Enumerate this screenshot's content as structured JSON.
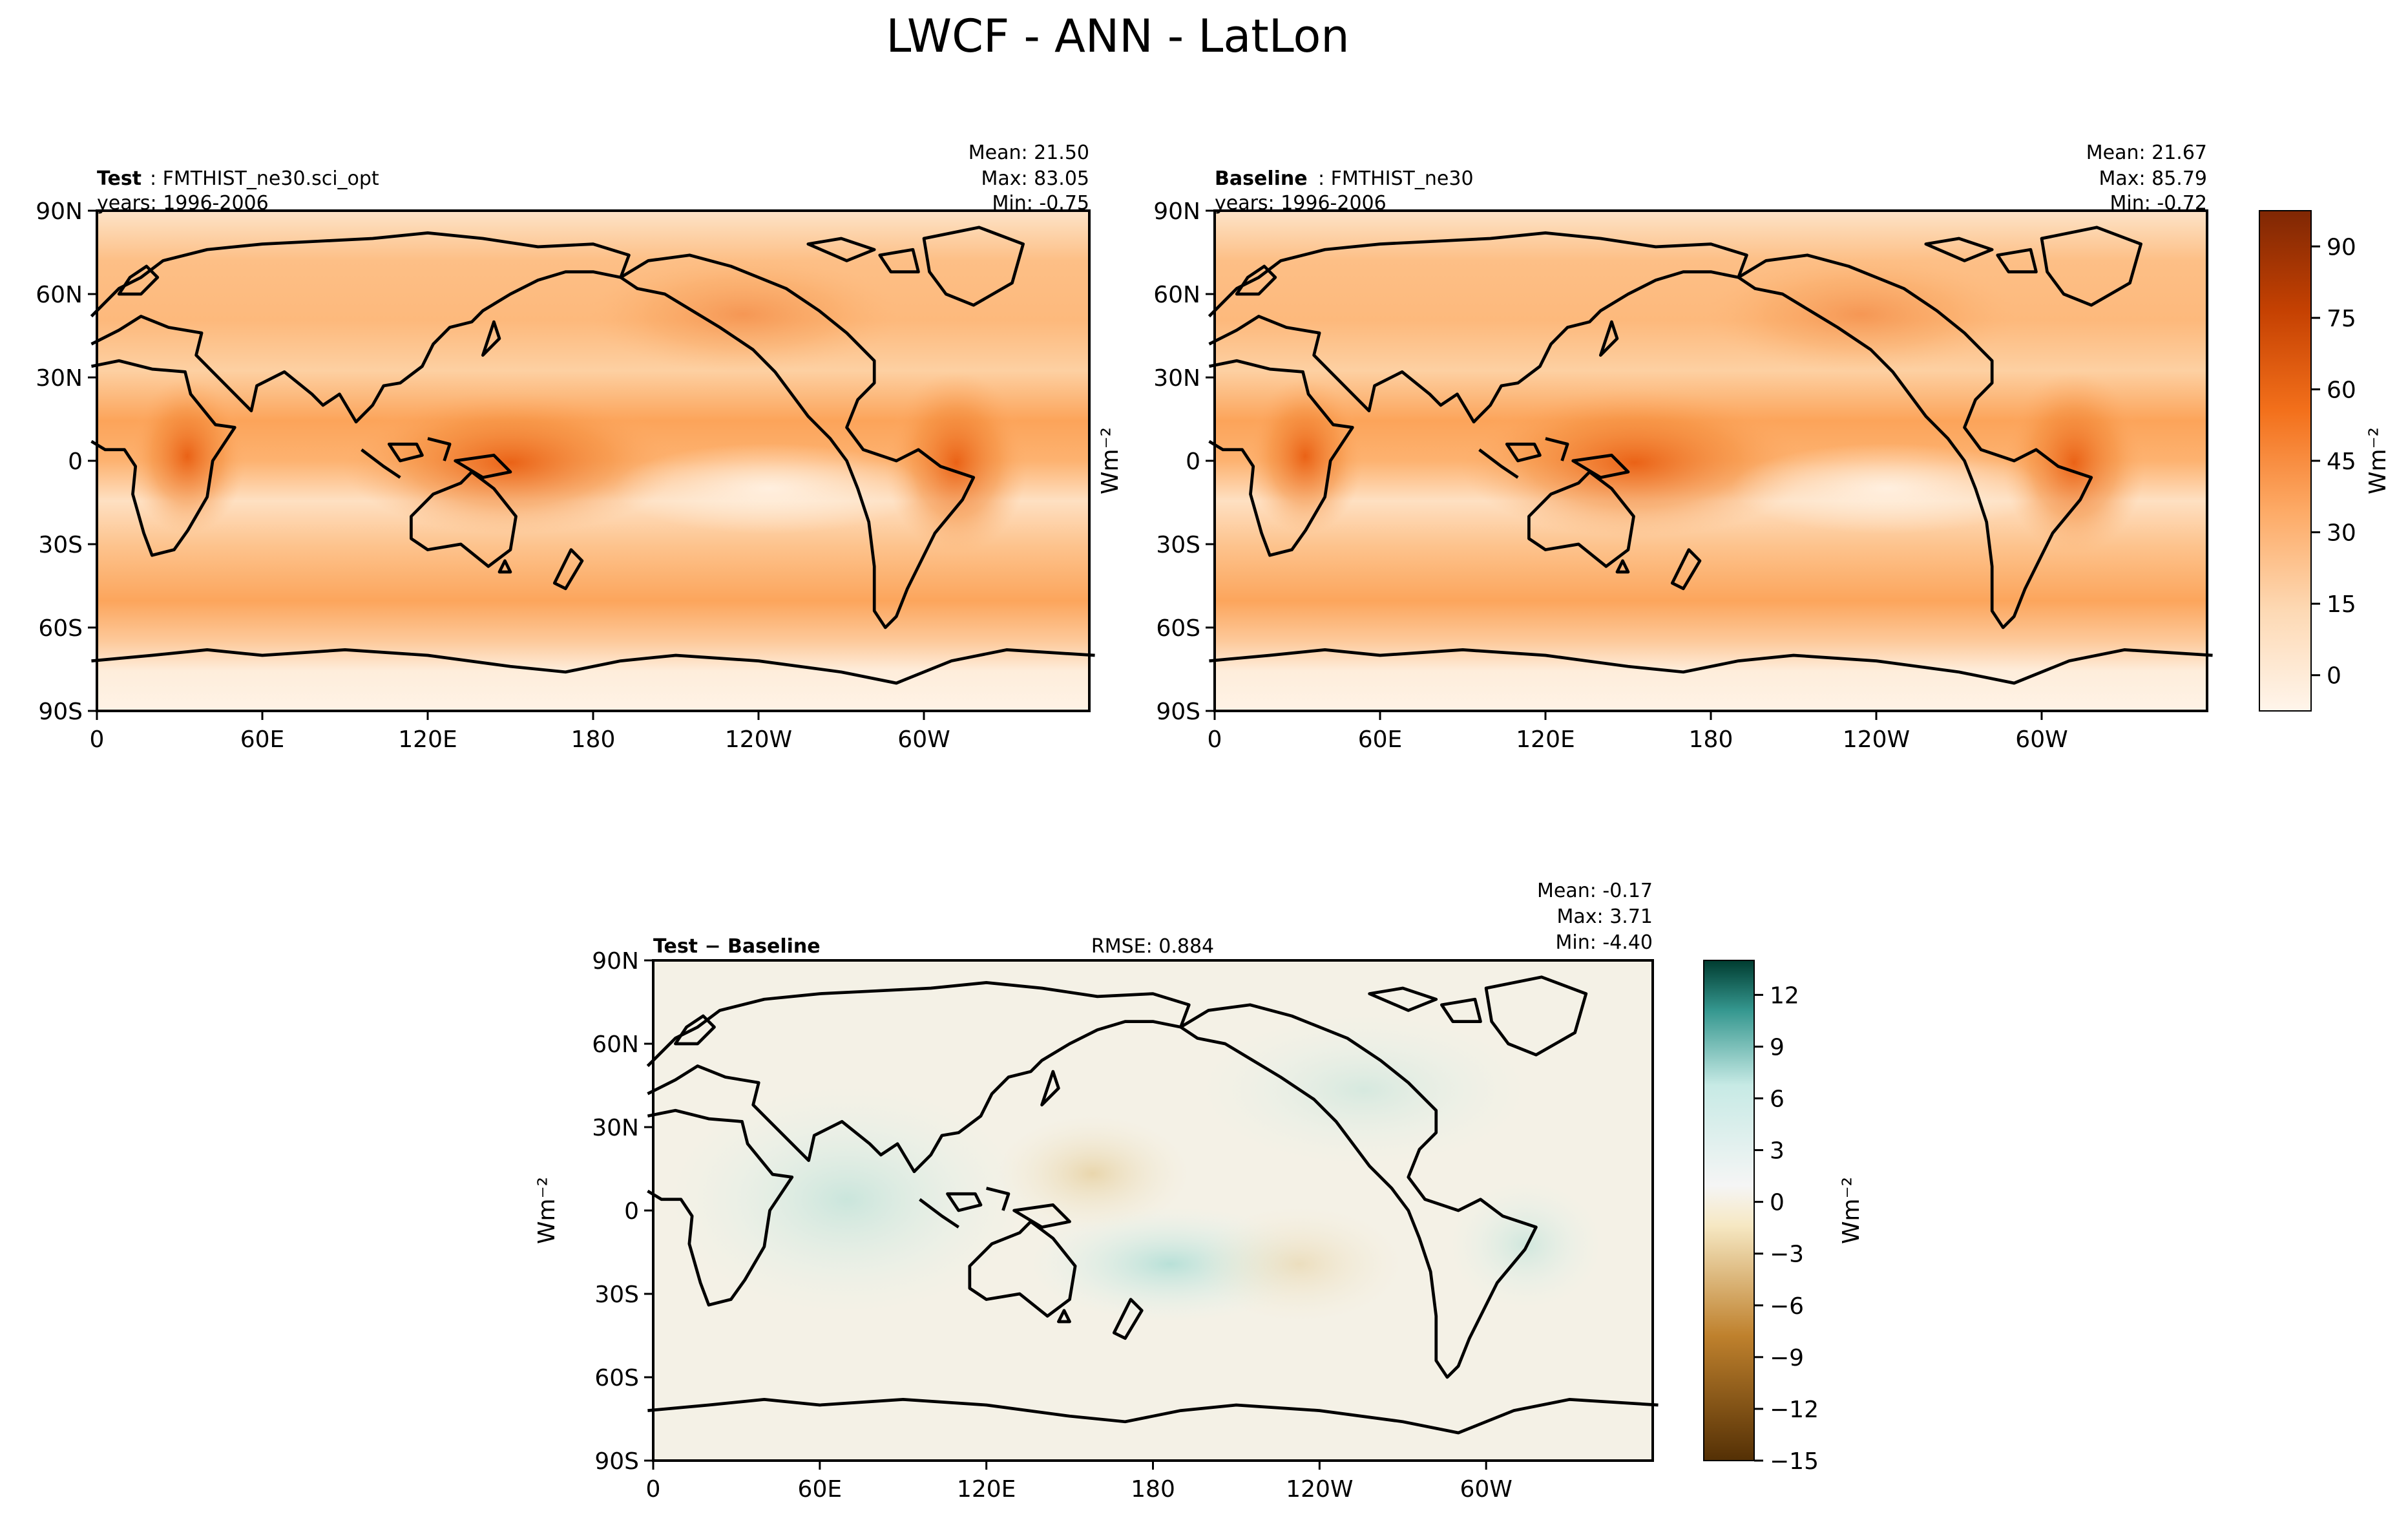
{
  "title": "LWCF - ANN - LatLon",
  "lat_ticks": [
    "90N",
    "60N",
    "30N",
    "0",
    "30S",
    "60S",
    "90S"
  ],
  "lon_ticks": [
    "0",
    "60E",
    "120E",
    "180",
    "120W",
    "60W"
  ],
  "units": "Wm⁻²",
  "panels": {
    "test": {
      "name_bold": "Test",
      "name_rest": ": FMTHIST_ne30.sci_opt",
      "years": "years: 1996-2006",
      "mean": "Mean: 21.50",
      "max": "Max: 83.05",
      "min": "Min: -0.75"
    },
    "baseline": {
      "name_bold": "Baseline",
      "name_rest": ": FMTHIST_ne30",
      "years": "years: 1996-2006",
      "mean": "Mean: 21.67",
      "max": "Max: 85.79",
      "min": "Min: -0.72"
    },
    "diff": {
      "name_bold": "Test − Baseline",
      "rmse": "RMSE: 0.884",
      "mean": "Mean: -0.17",
      "max": "Max:  3.71",
      "min": "Min: -4.40"
    }
  },
  "colorbar_main": {
    "ticks": [
      "90",
      "75",
      "60",
      "45",
      "30",
      "15",
      "0"
    ],
    "colormap": "Oranges",
    "colors": [
      "#fff5eb",
      "#fdd9b4",
      "#fdaa66",
      "#f3701b",
      "#c54102",
      "#7f2704"
    ]
  },
  "colorbar_diff": {
    "ticks": [
      "12",
      "9",
      "6",
      "3",
      "0",
      "−3",
      "−6",
      "−9",
      "−12",
      "−15"
    ],
    "colormap": "BrBG",
    "colors": [
      "#003c30",
      "#35978f",
      "#c7eae5",
      "#f5f5f5",
      "#f6e8c3",
      "#bf812d",
      "#543005"
    ]
  }
}
